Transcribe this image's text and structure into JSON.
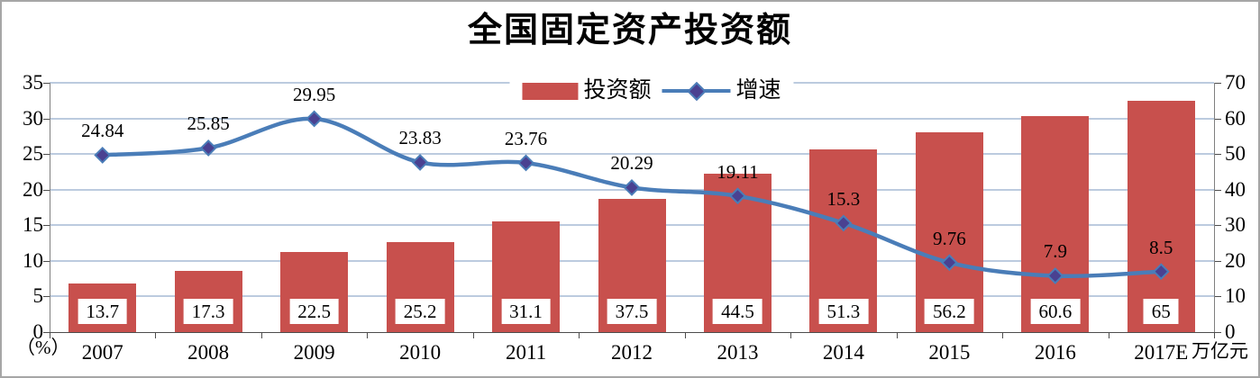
{
  "title": "全国固定资产投资额",
  "legend": {
    "bar_label": "投资额",
    "line_label": "增速"
  },
  "axes": {
    "left_unit": "（%）",
    "right_unit": "万亿元"
  },
  "colors": {
    "bar": "#c8504d",
    "line": "#4a7db8",
    "marker_fill": "#4a4191",
    "gridline": "#bccbdf",
    "axis": "#4d4d4d",
    "text": "#000000",
    "frame": "#a6a6a6"
  },
  "chart_data": {
    "type": "bar+line combo",
    "title": "全国固定资产投资额",
    "categories": [
      "2007",
      "2008",
      "2009",
      "2010",
      "2011",
      "2012",
      "2013",
      "2014",
      "2015",
      "2016",
      "2017E"
    ],
    "series": [
      {
        "name": "投资额",
        "type": "bar",
        "axis": "right",
        "unit": "万亿元",
        "values": [
          13.7,
          17.3,
          22.5,
          25.2,
          31.1,
          37.5,
          44.5,
          51.3,
          56.2,
          60.6,
          65
        ]
      },
      {
        "name": "增速",
        "type": "line",
        "axis": "left",
        "unit": "%",
        "values": [
          24.84,
          25.85,
          29.95,
          23.83,
          23.76,
          20.29,
          19.11,
          15.3,
          9.76,
          7.9,
          8.5
        ]
      }
    ],
    "left_axis": {
      "ticks": [
        0,
        5,
        10,
        15,
        20,
        25,
        30,
        35
      ],
      "ylim": [
        0,
        35
      ],
      "label": "（%）"
    },
    "right_axis": {
      "ticks": [
        0,
        10,
        20,
        30,
        40,
        50,
        60,
        70
      ],
      "ylim": [
        0,
        70
      ],
      "label": "万亿元"
    },
    "grid": true,
    "gridline_step_left": 5,
    "legend_position": "top-center",
    "smooth_line": true
  }
}
